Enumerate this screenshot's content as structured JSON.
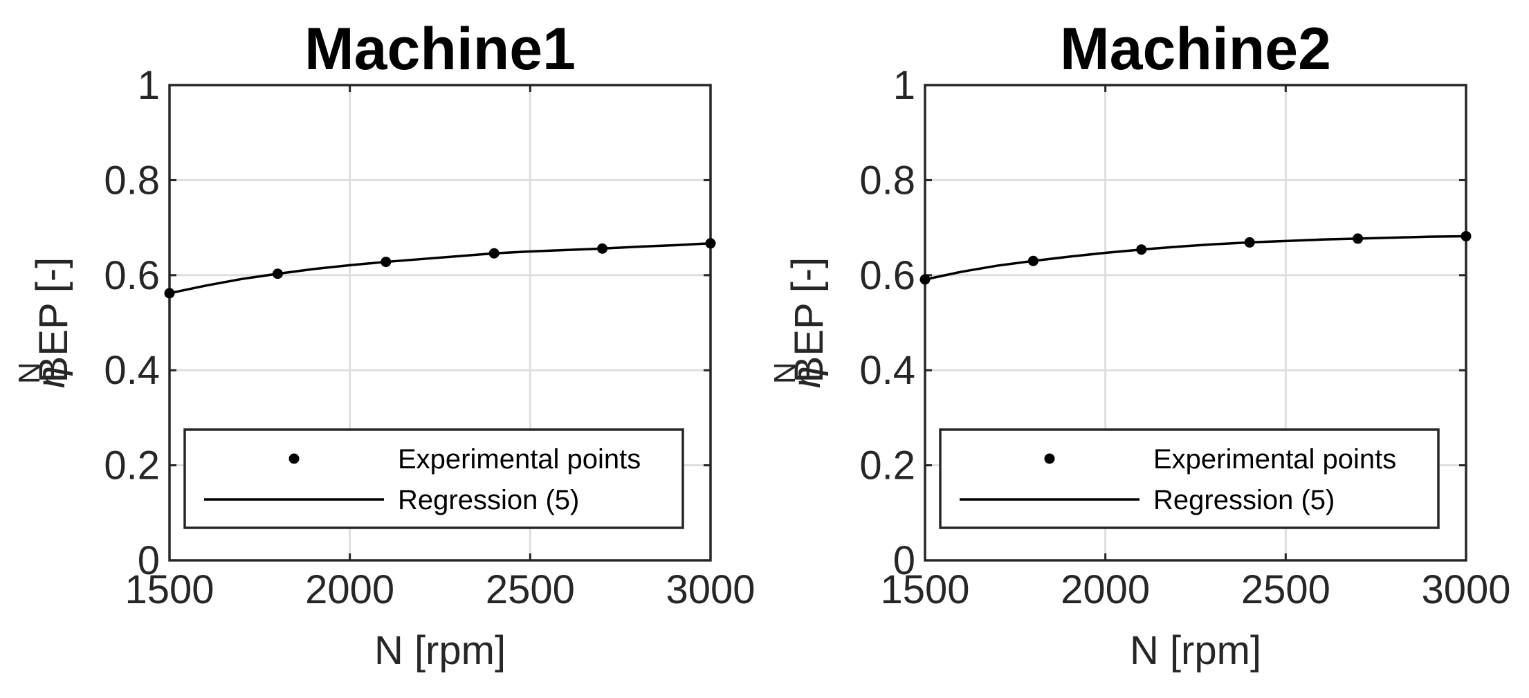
{
  "chart_data": [
    {
      "type": "line",
      "title": "Machine1",
      "xlabel": "N [rpm]",
      "ylabel": {
        "symbol": "η",
        "superscript": "N",
        "subscript": "BEP",
        "unit": "[-]"
      },
      "xlim": [
        1500,
        3000
      ],
      "ylim": [
        0,
        1
      ],
      "xticks": [
        "1500",
        "2000",
        "2500",
        "3000"
      ],
      "yticks": [
        "0",
        "0.2",
        "0.4",
        "0.6",
        "0.8",
        "1"
      ],
      "grid": true,
      "legend_position": "bottom",
      "series": [
        {
          "name": "Experimental points",
          "style": "markers",
          "x": [
            1500,
            1800,
            2100,
            2400,
            2700,
            3000
          ],
          "y": [
            0.562,
            0.603,
            0.628,
            0.646,
            0.656,
            0.667
          ]
        },
        {
          "name": "Regression (5)",
          "style": "line",
          "x": [
            1500,
            1600,
            1700,
            1800,
            1900,
            2000,
            2100,
            2200,
            2300,
            2400,
            2500,
            2600,
            2700,
            2800,
            2900,
            3000
          ],
          "y": [
            0.562,
            0.578,
            0.592,
            0.603,
            0.613,
            0.621,
            0.628,
            0.634,
            0.64,
            0.646,
            0.65,
            0.653,
            0.656,
            0.66,
            0.663,
            0.667
          ]
        }
      ]
    },
    {
      "type": "line",
      "title": "Machine2",
      "xlabel": "N [rpm]",
      "ylabel": {
        "symbol": "η",
        "superscript": "N",
        "subscript": "BEP",
        "unit": "[-]"
      },
      "xlim": [
        1500,
        3000
      ],
      "ylim": [
        0,
        1
      ],
      "xticks": [
        "1500",
        "2000",
        "2500",
        "3000"
      ],
      "yticks": [
        "0",
        "0.2",
        "0.4",
        "0.6",
        "0.8",
        "1"
      ],
      "grid": true,
      "legend_position": "bottom",
      "series": [
        {
          "name": "Experimental points",
          "style": "markers",
          "x": [
            1500,
            1800,
            2100,
            2400,
            2700,
            3000
          ],
          "y": [
            0.591,
            0.63,
            0.654,
            0.669,
            0.677,
            0.682
          ]
        },
        {
          "name": "Regression (5)",
          "style": "line",
          "x": [
            1500,
            1600,
            1700,
            1800,
            1900,
            2000,
            2100,
            2200,
            2300,
            2400,
            2500,
            2600,
            2700,
            2800,
            2900,
            3000
          ],
          "y": [
            0.591,
            0.607,
            0.62,
            0.63,
            0.639,
            0.647,
            0.654,
            0.66,
            0.665,
            0.669,
            0.672,
            0.675,
            0.677,
            0.679,
            0.681,
            0.682
          ]
        }
      ]
    }
  ]
}
